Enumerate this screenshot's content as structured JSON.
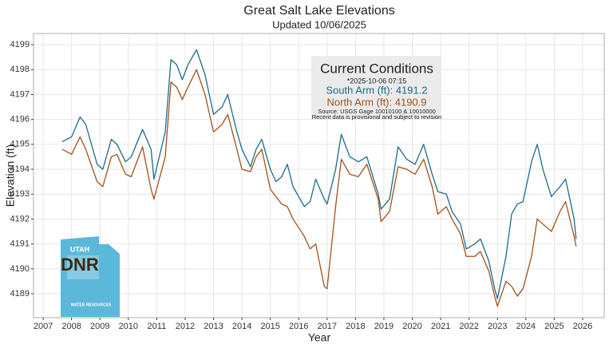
{
  "chart_data": {
    "type": "line",
    "title": "Great Salt Lake Elevations",
    "subtitle": "Updated 10/06/2025",
    "x_label": "Year",
    "y_label": "Elevation (ft)",
    "xlim": [
      2006.66,
      2026.76
    ],
    "ylim": [
      4188.04,
      4199.45
    ],
    "xticks": [
      2007,
      2008,
      2009,
      2010,
      2011,
      2012,
      2013,
      2014,
      2015,
      2016,
      2017,
      2018,
      2019,
      2020,
      2021,
      2022,
      2023,
      2024,
      2025,
      2026
    ],
    "yticks": [
      4189,
      4190,
      4191,
      4192,
      4193,
      4194,
      4195,
      4196,
      4197,
      4198,
      4199
    ],
    "grid": true,
    "x": [
      2007.67,
      2008.0,
      2008.3,
      2008.5,
      2008.9,
      2009.1,
      2009.4,
      2009.6,
      2009.9,
      2010.1,
      2010.5,
      2010.8,
      2010.9,
      2011.3,
      2011.5,
      2011.7,
      2011.9,
      2012.1,
      2012.4,
      2012.7,
      2013.0,
      2013.3,
      2013.5,
      2013.8,
      2014.0,
      2014.3,
      2014.5,
      2014.7,
      2015.0,
      2015.2,
      2015.4,
      2015.6,
      2015.8,
      2016.2,
      2016.4,
      2016.6,
      2016.9,
      2017.0,
      2017.3,
      2017.5,
      2017.8,
      2018.1,
      2018.4,
      2018.8,
      2018.9,
      2019.2,
      2019.5,
      2019.8,
      2020.1,
      2020.4,
      2020.7,
      2020.9,
      2021.2,
      2021.4,
      2021.7,
      2021.9,
      2022.2,
      2022.4,
      2022.7,
      2022.9,
      2023.0,
      2023.3,
      2023.5,
      2023.7,
      2023.9,
      2024.2,
      2024.4,
      2024.6,
      2024.9,
      2025.2,
      2025.4,
      2025.7,
      2025.77
    ],
    "series": [
      {
        "name": "South Arm",
        "color": "#1b6b8a",
        "values": [
          4195.1,
          4195.3,
          4196.1,
          4195.8,
          4194.2,
          4194.0,
          4195.2,
          4195.0,
          4194.3,
          4194.5,
          4195.6,
          4194.8,
          4193.6,
          4195.5,
          4198.4,
          4198.2,
          4197.6,
          4198.2,
          4198.8,
          4197.8,
          4196.2,
          4196.5,
          4197.0,
          4195.6,
          4194.8,
          4194.1,
          4194.8,
          4195.2,
          4194.0,
          4193.5,
          4193.7,
          4194.2,
          4193.3,
          4192.5,
          4192.7,
          4193.6,
          4192.8,
          4192.6,
          4194.0,
          4195.4,
          4194.5,
          4194.3,
          4194.5,
          4193.0,
          4192.4,
          4192.8,
          4194.9,
          4194.4,
          4194.2,
          4195.0,
          4193.8,
          4193.1,
          4193.0,
          4192.3,
          4191.8,
          4190.8,
          4191.0,
          4191.2,
          4190.3,
          4189.2,
          4188.8,
          4190.5,
          4192.2,
          4192.6,
          4192.7,
          4194.3,
          4195.0,
          4194.0,
          4192.9,
          4193.3,
          4193.6,
          4192.0,
          4191.2
        ]
      },
      {
        "name": "North Arm",
        "color": "#a0521b",
        "values": [
          4194.8,
          4194.6,
          4195.3,
          4194.8,
          4193.5,
          4193.3,
          4194.5,
          4194.6,
          4193.8,
          4193.7,
          4194.9,
          4193.2,
          4192.8,
          4194.5,
          4197.5,
          4197.3,
          4196.8,
          4197.3,
          4198.0,
          4197.0,
          4195.5,
          4195.8,
          4196.2,
          4194.9,
          4194.0,
          4193.9,
          4194.5,
          4194.8,
          4193.2,
          4192.9,
          4192.6,
          4192.5,
          4192.0,
          4191.3,
          4190.8,
          4191.0,
          4189.3,
          4189.2,
          4192.5,
          4194.4,
          4193.8,
          4193.7,
          4194.2,
          4192.8,
          4191.9,
          4192.3,
          4194.1,
          4194.0,
          4193.8,
          4194.4,
          4193.3,
          4192.2,
          4192.5,
          4192.0,
          4191.4,
          4190.5,
          4190.5,
          4190.7,
          4189.9,
          4188.9,
          4188.5,
          4189.5,
          4189.3,
          4188.9,
          4189.2,
          4190.5,
          4192.0,
          4191.8,
          4191.5,
          4192.3,
          4192.7,
          4191.3,
          4190.9
        ]
      }
    ],
    "annotation": {
      "heading": "Current Conditions",
      "timestamp": "*2025-10-06 07:15",
      "south": "South Arm (ft): 4191.2",
      "north": "North Arm (ft): 4190.9",
      "source": "Source: USGS Gage 10010100 & 10010000",
      "note": "Recent data is provisional and subject to revision"
    },
    "logo": {
      "state": "UTAH",
      "agency": "DNR",
      "division": "WATER RESOURCES"
    }
  }
}
